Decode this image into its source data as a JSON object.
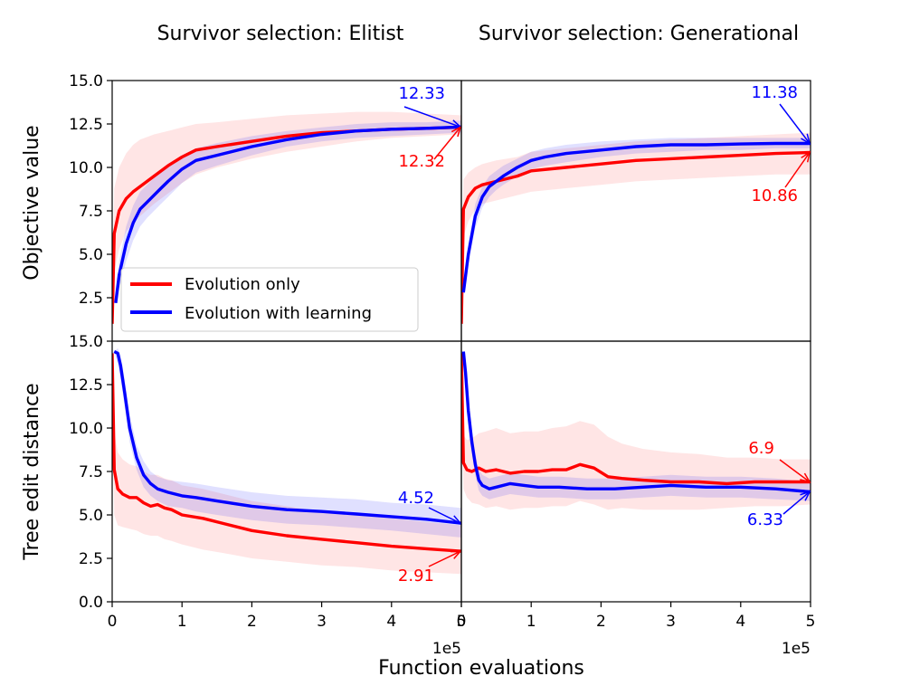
{
  "colors": {
    "red": "#ff0000",
    "blue": "#0000ff",
    "red_band": "#ff0000",
    "blue_band": "#0000ff"
  },
  "figure": {
    "shared_xlabel": "Function evaluations",
    "x_offset_label": "1e5",
    "legend": [
      "Evolution only",
      "Evolution with learning"
    ]
  },
  "chart_data": [
    {
      "type": "line",
      "title": "Survivor selection: Elitist",
      "ylabel": "Objective value",
      "xlim": [
        0,
        5
      ],
      "ylim": [
        0,
        15
      ],
      "xticks": [
        "0",
        "1",
        "2",
        "3",
        "4",
        "5"
      ],
      "yticks": [
        "15.0",
        "12.5",
        "10.0",
        "7.5",
        "5.0",
        "2.5"
      ],
      "series": [
        {
          "name": "Evolution only",
          "color": "red",
          "x": [
            0,
            0.03,
            0.1,
            0.2,
            0.3,
            0.4,
            0.6,
            0.8,
            1.0,
            1.2,
            1.5,
            2.0,
            2.5,
            3.0,
            3.5,
            4.0,
            4.5,
            5.0
          ],
          "y": [
            1.0,
            6.2,
            7.5,
            8.2,
            8.6,
            8.9,
            9.5,
            10.1,
            10.6,
            11.0,
            11.2,
            11.5,
            11.8,
            12.0,
            12.1,
            12.2,
            12.25,
            12.32
          ],
          "lower": [
            1.0,
            4.0,
            5.3,
            6.3,
            6.8,
            7.2,
            7.9,
            8.5,
            9.1,
            9.6,
            10.0,
            10.5,
            10.9,
            11.2,
            11.5,
            11.7,
            11.8,
            11.9
          ],
          "upper": [
            1.0,
            8.8,
            10.0,
            10.8,
            11.3,
            11.6,
            11.9,
            12.1,
            12.3,
            12.5,
            12.6,
            12.8,
            13.0,
            13.1,
            13.2,
            13.2,
            13.1,
            13.0
          ]
        },
        {
          "name": "Evolution with learning",
          "color": "blue",
          "x": [
            0.05,
            0.1,
            0.2,
            0.3,
            0.4,
            0.5,
            0.6,
            0.7,
            0.8,
            1.0,
            1.2,
            1.5,
            2.0,
            2.5,
            3.0,
            3.5,
            4.0,
            4.5,
            5.0
          ],
          "y": [
            2.2,
            3.8,
            5.6,
            6.8,
            7.6,
            8.0,
            8.4,
            8.8,
            9.2,
            9.9,
            10.4,
            10.7,
            11.2,
            11.6,
            11.9,
            12.1,
            12.2,
            12.25,
            12.33
          ],
          "lower": [
            2.2,
            3.0,
            4.6,
            5.8,
            6.6,
            7.1,
            7.5,
            7.9,
            8.3,
            9.1,
            9.7,
            10.1,
            10.7,
            11.2,
            11.5,
            11.7,
            11.8,
            11.9,
            12.0
          ],
          "upper": [
            2.2,
            4.6,
            6.6,
            7.8,
            8.6,
            9.0,
            9.4,
            9.8,
            10.2,
            10.7,
            11.1,
            11.4,
            11.8,
            12.1,
            12.3,
            12.5,
            12.6,
            12.6,
            12.7
          ]
        }
      ],
      "annotations": [
        {
          "text": "12.33",
          "color": "blue",
          "x": 5.0,
          "y": 12.33
        },
        {
          "text": "12.32",
          "color": "red",
          "x": 5.0,
          "y": 12.32
        }
      ]
    },
    {
      "type": "line",
      "title": "Survivor selection: Generational",
      "xlim": [
        0,
        5
      ],
      "ylim": [
        0,
        15
      ],
      "xticks": [
        "0",
        "1",
        "2",
        "3",
        "4",
        "5"
      ],
      "series": [
        {
          "name": "Evolution only",
          "color": "red",
          "x": [
            0,
            0.03,
            0.1,
            0.2,
            0.3,
            0.5,
            0.8,
            1.0,
            1.5,
            2.0,
            2.5,
            3.0,
            3.5,
            4.0,
            4.5,
            5.0
          ],
          "y": [
            1.0,
            7.6,
            8.3,
            8.8,
            9.0,
            9.2,
            9.5,
            9.8,
            10.0,
            10.2,
            10.4,
            10.5,
            10.6,
            10.7,
            10.8,
            10.86
          ],
          "lower": [
            1.0,
            6.0,
            6.9,
            7.6,
            7.9,
            8.1,
            8.4,
            8.6,
            8.8,
            9.0,
            9.2,
            9.3,
            9.4,
            9.5,
            9.6,
            9.6
          ],
          "upper": [
            1.0,
            9.3,
            9.7,
            10.0,
            10.2,
            10.4,
            10.6,
            10.9,
            11.1,
            11.3,
            11.5,
            11.6,
            11.7,
            11.8,
            11.9,
            12.0
          ]
        },
        {
          "name": "Evolution with learning",
          "color": "blue",
          "x": [
            0.03,
            0.1,
            0.2,
            0.3,
            0.4,
            0.5,
            0.6,
            0.8,
            1.0,
            1.2,
            1.5,
            2.0,
            2.5,
            3.0,
            3.5,
            4.0,
            4.5,
            5.0
          ],
          "y": [
            2.8,
            5.0,
            7.2,
            8.3,
            8.9,
            9.2,
            9.5,
            10.0,
            10.4,
            10.6,
            10.8,
            11.0,
            11.2,
            11.3,
            11.3,
            11.35,
            11.38,
            11.38
          ],
          "lower": [
            2.8,
            4.4,
            6.5,
            7.7,
            8.3,
            8.7,
            9.0,
            9.5,
            9.9,
            10.1,
            10.3,
            10.6,
            10.8,
            10.9,
            11.0,
            11.0,
            11.1,
            11.1
          ],
          "upper": [
            2.8,
            5.6,
            7.9,
            8.9,
            9.5,
            9.8,
            10.1,
            10.5,
            10.9,
            11.1,
            11.3,
            11.5,
            11.6,
            11.7,
            11.7,
            11.7,
            11.7,
            11.7
          ]
        }
      ],
      "annotations": [
        {
          "text": "11.38",
          "color": "blue",
          "x": 5.0,
          "y": 11.38
        },
        {
          "text": "10.86",
          "color": "red",
          "x": 5.0,
          "y": 10.86
        }
      ]
    },
    {
      "type": "line",
      "ylabel": "Tree edit distance",
      "xlim": [
        0,
        5
      ],
      "ylim": [
        0,
        15
      ],
      "xticks": [
        "0",
        "1",
        "2",
        "3",
        "4",
        "5"
      ],
      "yticks": [
        "15.0",
        "12.5",
        "10.0",
        "7.5",
        "5.0",
        "2.5",
        "0.0"
      ],
      "series": [
        {
          "name": "Evolution only",
          "color": "red",
          "x": [
            0,
            0.03,
            0.08,
            0.15,
            0.25,
            0.35,
            0.45,
            0.55,
            0.65,
            0.75,
            0.85,
            1.0,
            1.3,
            1.6,
            2.0,
            2.5,
            3.0,
            3.5,
            4.0,
            4.5,
            5.0
          ],
          "y": [
            14.3,
            7.6,
            6.5,
            6.2,
            6.0,
            6.0,
            5.7,
            5.5,
            5.6,
            5.4,
            5.3,
            5.0,
            4.8,
            4.5,
            4.1,
            3.8,
            3.6,
            3.4,
            3.2,
            3.05,
            2.91
          ],
          "lower": [
            14.3,
            5.0,
            4.4,
            4.3,
            4.2,
            4.1,
            3.9,
            3.8,
            3.8,
            3.6,
            3.5,
            3.3,
            3.0,
            2.8,
            2.5,
            2.3,
            2.1,
            2.0,
            1.8,
            1.7,
            1.6
          ],
          "upper": [
            14.3,
            9.8,
            8.6,
            8.2,
            7.9,
            7.8,
            7.5,
            7.3,
            7.3,
            7.1,
            7.0,
            6.7,
            6.5,
            6.2,
            5.8,
            5.5,
            5.2,
            5.0,
            4.8,
            4.6,
            4.4
          ]
        },
        {
          "name": "Evolution with learning",
          "color": "blue",
          "x": [
            0.03,
            0.08,
            0.12,
            0.18,
            0.25,
            0.35,
            0.45,
            0.55,
            0.65,
            0.8,
            1.0,
            1.2,
            1.5,
            2.0,
            2.5,
            3.0,
            3.5,
            4.0,
            4.5,
            5.0
          ],
          "y": [
            14.4,
            14.3,
            13.6,
            12.0,
            10.0,
            8.3,
            7.3,
            6.8,
            6.5,
            6.3,
            6.1,
            6.0,
            5.8,
            5.5,
            5.3,
            5.2,
            5.05,
            4.9,
            4.75,
            4.52
          ],
          "lower": [
            14.4,
            13.7,
            12.8,
            11.2,
            9.2,
            7.6,
            6.6,
            6.1,
            5.8,
            5.5,
            5.4,
            5.2,
            5.0,
            4.7,
            4.5,
            4.4,
            4.25,
            4.1,
            3.9,
            3.7
          ],
          "upper": [
            14.4,
            14.6,
            14.2,
            12.8,
            10.8,
            9.0,
            8.1,
            7.5,
            7.2,
            7.0,
            6.9,
            6.8,
            6.6,
            6.3,
            6.1,
            6.0,
            5.9,
            5.7,
            5.6,
            5.4
          ]
        }
      ],
      "annotations": [
        {
          "text": "4.52",
          "color": "blue",
          "x": 5.0,
          "y": 4.52
        },
        {
          "text": "2.91",
          "color": "red",
          "x": 5.0,
          "y": 2.91
        }
      ]
    },
    {
      "type": "line",
      "xlim": [
        0,
        5
      ],
      "ylim": [
        0,
        15
      ],
      "xticks": [
        "0",
        "1",
        "2",
        "3",
        "4",
        "5"
      ],
      "series": [
        {
          "name": "Evolution only",
          "color": "red",
          "x": [
            0,
            0.03,
            0.08,
            0.15,
            0.25,
            0.35,
            0.5,
            0.7,
            0.9,
            1.1,
            1.3,
            1.5,
            1.7,
            1.9,
            2.1,
            2.3,
            2.6,
            3.0,
            3.4,
            3.8,
            4.2,
            4.6,
            5.0
          ],
          "y": [
            14.3,
            8.0,
            7.6,
            7.5,
            7.7,
            7.5,
            7.6,
            7.4,
            7.5,
            7.5,
            7.6,
            7.6,
            7.9,
            7.7,
            7.2,
            7.1,
            7.0,
            6.9,
            6.9,
            6.8,
            6.9,
            6.9,
            6.9
          ],
          "lower": [
            14.3,
            6.5,
            6.0,
            5.7,
            5.6,
            5.4,
            5.5,
            5.3,
            5.4,
            5.4,
            5.5,
            5.5,
            5.8,
            5.6,
            5.3,
            5.4,
            5.3,
            5.3,
            5.3,
            5.4,
            5.5,
            5.5,
            5.6
          ],
          "upper": [
            14.3,
            9.6,
            9.3,
            9.4,
            9.7,
            9.8,
            10.0,
            9.7,
            9.8,
            9.8,
            10.0,
            10.1,
            10.4,
            10.2,
            9.5,
            9.1,
            8.8,
            8.6,
            8.5,
            8.3,
            8.3,
            8.2,
            8.2
          ]
        },
        {
          "name": "Evolution with learning",
          "color": "blue",
          "x": [
            0.03,
            0.06,
            0.1,
            0.15,
            0.2,
            0.25,
            0.3,
            0.4,
            0.5,
            0.7,
            0.9,
            1.1,
            1.4,
            1.8,
            2.2,
            2.6,
            3.0,
            3.5,
            4.0,
            4.5,
            5.0
          ],
          "y": [
            14.4,
            13.2,
            11.0,
            9.2,
            7.9,
            7.0,
            6.7,
            6.5,
            6.6,
            6.8,
            6.7,
            6.6,
            6.6,
            6.5,
            6.5,
            6.6,
            6.7,
            6.6,
            6.6,
            6.5,
            6.33
          ],
          "lower": [
            14.4,
            12.6,
            10.3,
            8.5,
            7.3,
            6.4,
            6.1,
            5.9,
            6.0,
            6.2,
            6.1,
            6.0,
            6.0,
            5.9,
            5.9,
            6.0,
            6.1,
            6.0,
            6.0,
            5.9,
            5.8
          ],
          "upper": [
            14.4,
            13.8,
            11.7,
            9.9,
            8.5,
            7.6,
            7.3,
            7.1,
            7.2,
            7.4,
            7.3,
            7.2,
            7.2,
            7.1,
            7.1,
            7.2,
            7.3,
            7.2,
            7.2,
            7.1,
            6.9
          ]
        }
      ],
      "annotations": [
        {
          "text": "6.9",
          "color": "red",
          "x": 5.0,
          "y": 6.9
        },
        {
          "text": "6.33",
          "color": "blue",
          "x": 5.0,
          "y": 6.33
        }
      ]
    }
  ]
}
